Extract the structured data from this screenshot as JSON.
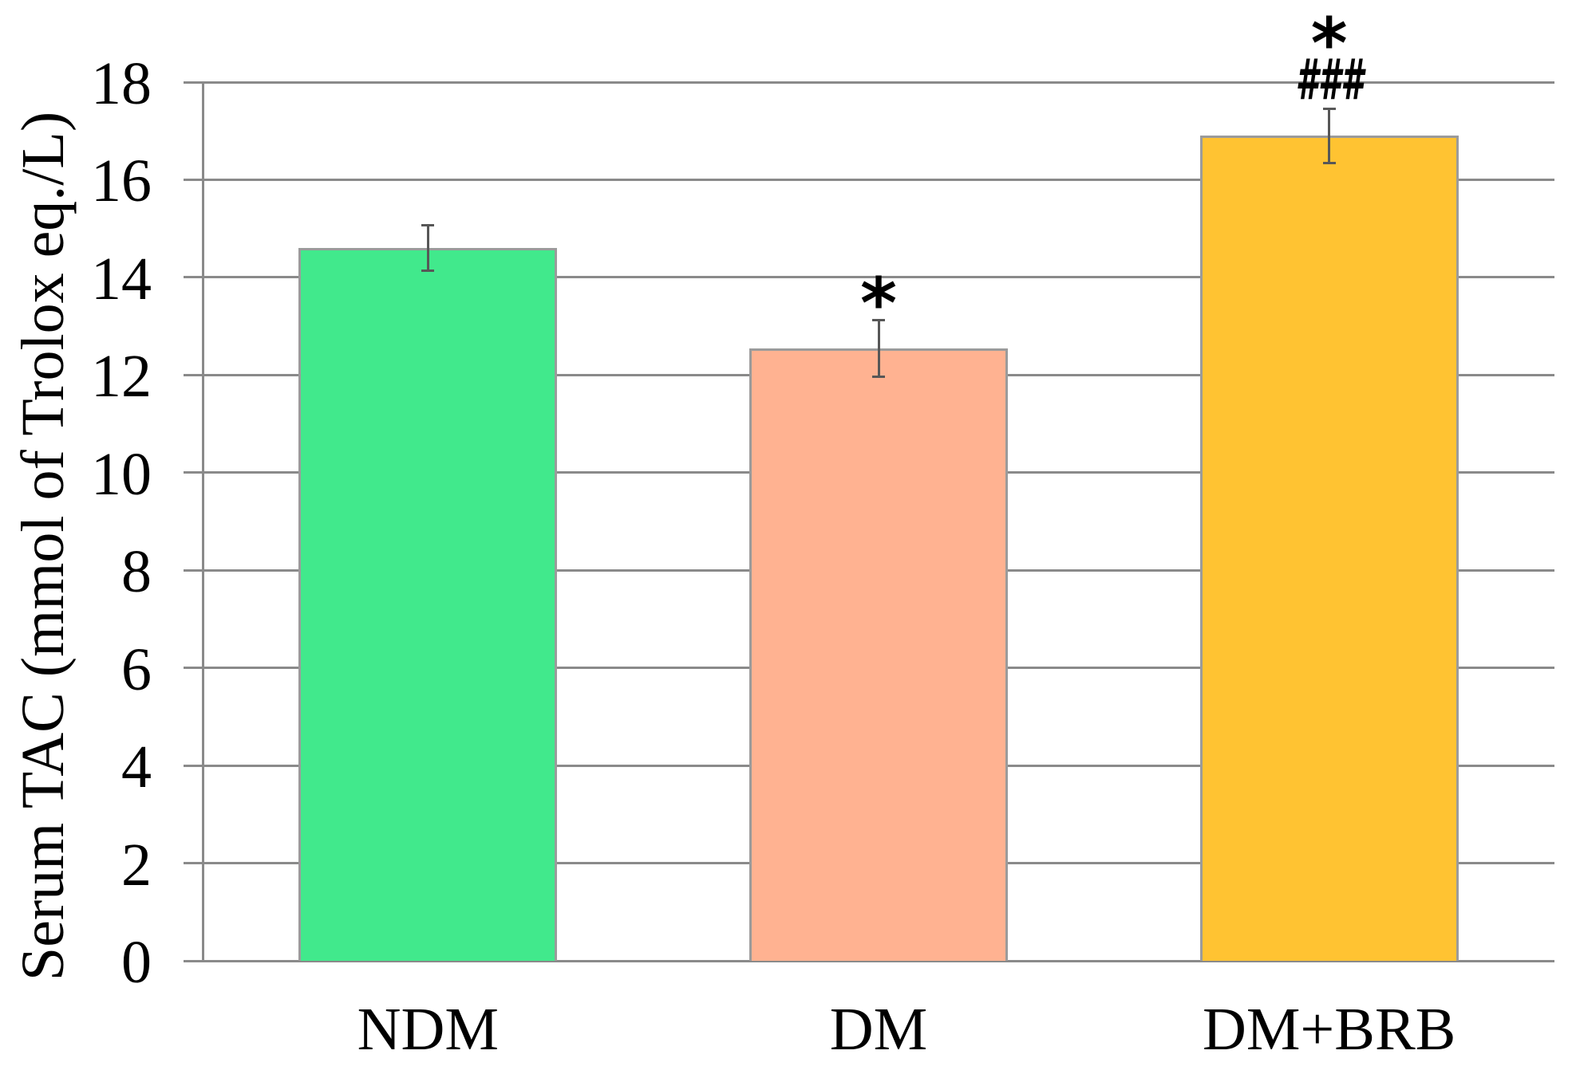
{
  "chart_data": {
    "type": "bar",
    "title": "",
    "ylabel": "Serum TAC (mmol of Trolox eq./L)",
    "xlabel": "",
    "categories": [
      "NDM",
      "DM",
      "DM+BRB"
    ],
    "series": [
      {
        "name": "Serum TAC",
        "values": [
          14.6,
          12.55,
          16.9
        ],
        "errors": [
          0.47,
          0.58,
          0.55
        ]
      }
    ],
    "annotations": [
      {
        "category": "NDM",
        "labels": []
      },
      {
        "category": "DM",
        "labels": [
          "*"
        ]
      },
      {
        "category": "DM+BRB",
        "labels": [
          "*",
          "###"
        ]
      }
    ],
    "bar_colors": [
      "#41E98C",
      "#FFB291",
      "#FFC332"
    ],
    "ylim": [
      0,
      18
    ],
    "yticks": [
      0,
      2,
      4,
      6,
      8,
      10,
      12,
      14,
      16,
      18
    ],
    "grid": "horizontal",
    "legend": "none"
  },
  "style_colors": {
    "background": "#FFFFFF",
    "gridline": "#8A8A8A",
    "axis": "#8A8A8A",
    "bar_border": "#9B9B9B",
    "error_bar": "#575757",
    "text": "#000000"
  }
}
